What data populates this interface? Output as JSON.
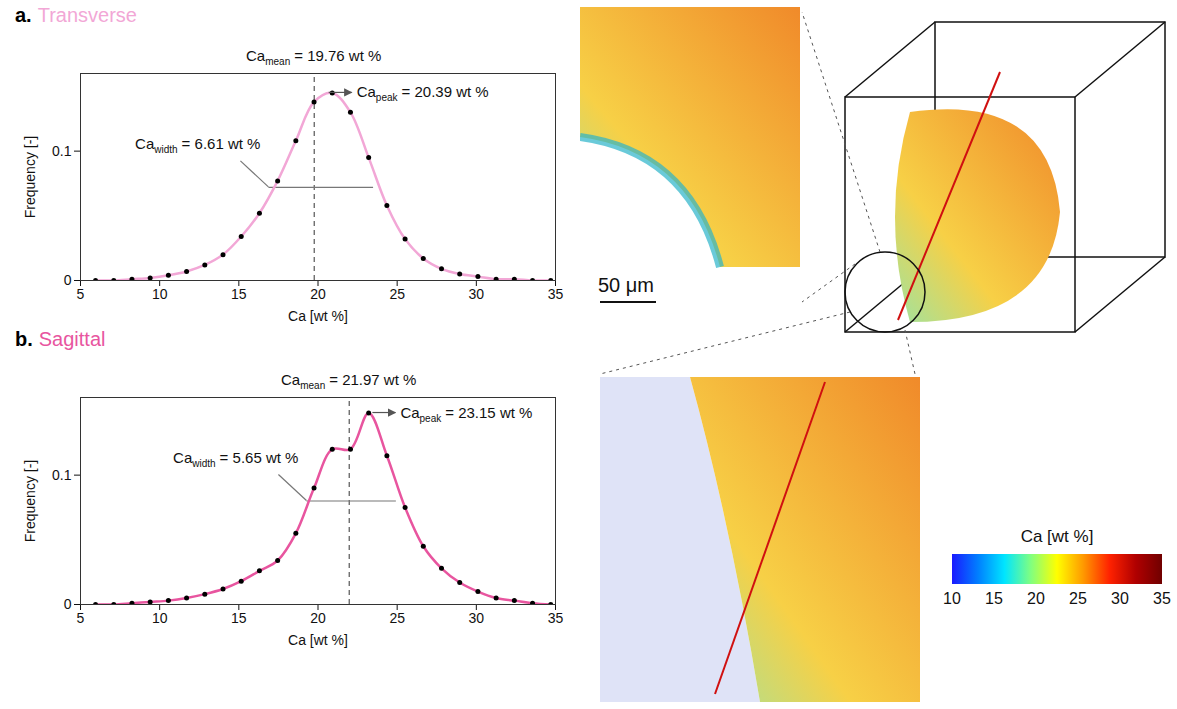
{
  "chart_data": [
    {
      "type": "line",
      "panel_label": "a.",
      "title": "Transverse",
      "color": "#f2a7d6",
      "marker": "circle",
      "line_style": "solid",
      "x_label": "Ca [wt %]",
      "y_label": "Frequency [-]",
      "xlim": [
        5,
        35
      ],
      "xticks": [
        5,
        10,
        15,
        20,
        25,
        30,
        35
      ],
      "ylim": [
        0,
        0.16
      ],
      "yticks": [
        0,
        0.1
      ],
      "x": [
        5.95,
        7.1,
        8.25,
        9.4,
        10.55,
        11.7,
        12.85,
        14.0,
        15.15,
        16.3,
        17.45,
        18.6,
        19.75,
        20.9,
        22.05,
        23.2,
        24.35,
        25.5,
        26.65,
        27.8,
        28.95,
        30.1,
        31.25,
        32.4,
        33.55,
        34.7
      ],
      "values": [
        0,
        0,
        0.001,
        0.002,
        0.004,
        0.007,
        0.012,
        0.02,
        0.034,
        0.052,
        0.077,
        0.108,
        0.138,
        0.145,
        0.13,
        0.095,
        0.058,
        0.032,
        0.017,
        0.009,
        0.005,
        0.003,
        0.001,
        0.001,
        0,
        0
      ],
      "annotations": {
        "mean": {
          "symbol": "Ca",
          "subscript": "mean",
          "text": "= 19.76 wt %",
          "x": 19.76
        },
        "width": {
          "symbol": "Ca",
          "subscript": "width",
          "text": "= 6.61 wt %",
          "x": [
            16.9,
            23.51
          ],
          "y": 0.072
        },
        "peak": {
          "symbol": "Ca",
          "subscript": "peak",
          "text": "= 20.39 wt %",
          "x": 20.39,
          "y": 0.145
        }
      }
    },
    {
      "type": "line",
      "panel_label": "b.",
      "title": "Sagittal",
      "color": "#e8559f",
      "marker": "circle",
      "line_style": "solid",
      "x_label": "Ca [wt %]",
      "y_label": "Frequency [-]",
      "xlim": [
        5,
        35
      ],
      "xticks": [
        5,
        10,
        15,
        20,
        25,
        30,
        35
      ],
      "ylim": [
        0,
        0.16
      ],
      "yticks": [
        0,
        0.1
      ],
      "x": [
        5.95,
        7.1,
        8.25,
        9.4,
        10.55,
        11.7,
        12.85,
        14.0,
        15.15,
        16.3,
        17.45,
        18.6,
        19.75,
        20.9,
        22.05,
        23.2,
        24.35,
        25.5,
        26.65,
        27.8,
        28.95,
        30.1,
        31.25,
        32.4,
        33.55,
        34.7
      ],
      "values": [
        0,
        0,
        0.001,
        0.002,
        0.003,
        0.005,
        0.008,
        0.012,
        0.018,
        0.026,
        0.034,
        0.055,
        0.09,
        0.12,
        0.12,
        0.148,
        0.115,
        0.075,
        0.045,
        0.028,
        0.017,
        0.01,
        0.005,
        0.003,
        0.001,
        0
      ],
      "annotations": {
        "mean": {
          "symbol": "Ca",
          "subscript": "mean",
          "text": "= 21.97 wt %",
          "x": 21.97
        },
        "width": {
          "symbol": "Ca",
          "subscript": "width",
          "text": "= 5.65 wt %",
          "x": [
            19.3,
            24.95
          ],
          "y": 0.08
        },
        "peak": {
          "symbol": "Ca",
          "subscript": "peak",
          "text": "= 23.15 wt %",
          "x": 23.15,
          "y": 0.148
        }
      }
    }
  ],
  "image_panels": {
    "scale_bar": "50 μm",
    "colorbar": {
      "label": "Ca [wt %]",
      "range": [
        10,
        35
      ],
      "ticks": [
        10,
        15,
        20,
        25,
        30,
        35
      ],
      "colors": [
        "#1a1aff",
        "#0080ff",
        "#00e5ff",
        "#80ff80",
        "#ffff00",
        "#ff9900",
        "#ff2200",
        "#b00000",
        "#700000"
      ]
    }
  }
}
